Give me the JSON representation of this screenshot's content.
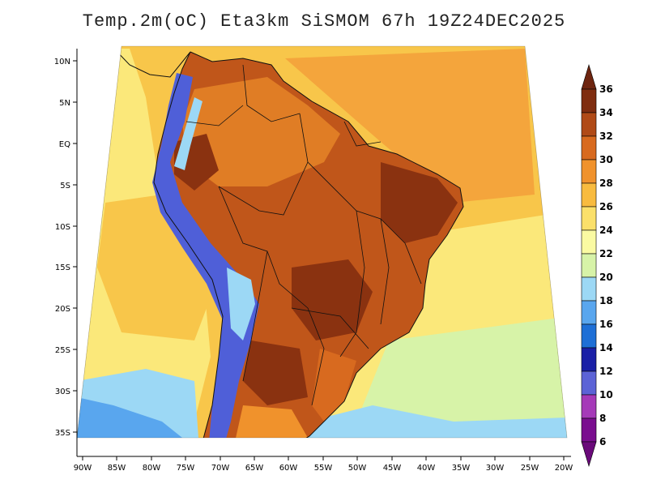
{
  "title": "Temp.2m(oC) Eta3km SiSMOM 67h 19Z24DEC2025",
  "lat_labels": [
    "10N",
    "5N",
    "EQ",
    "5S",
    "10S",
    "15S",
    "20S",
    "25S",
    "30S",
    "35S"
  ],
  "lon_labels": [
    "90W",
    "85W",
    "80W",
    "75W",
    "70W",
    "65W",
    "60W",
    "55W",
    "50W",
    "45W",
    "40W",
    "35W",
    "30W",
    "25W",
    "20W"
  ],
  "colorbar": {
    "labels": [
      "6",
      "8",
      "10",
      "12",
      "14",
      "16",
      "18",
      "20",
      "22",
      "24",
      "26",
      "28",
      "30",
      "32",
      "34",
      "36"
    ],
    "colors": [
      "#7a0d8f",
      "#a53ab8",
      "#5c63d6",
      "#1a1fa6",
      "#1e6fd6",
      "#59a6ee",
      "#9cd8f5",
      "#d7f3a8",
      "#fafaa2",
      "#fbe06a",
      "#f8bb3f",
      "#f0922c",
      "#d86a1f",
      "#b04a17",
      "#7f2d10"
    ],
    "cap_bottom_color": "#6a0a7a",
    "cap_top_color": "#6e2510"
  },
  "colors": {
    "ocean_warm": "#f8c64a",
    "ocean_mid": "#fbe87a",
    "ocean_cool": "#d7f3a8",
    "ocean_cold": "#8fcff2",
    "land_hot": "#c0561a",
    "land_very_hot": "#8a3210",
    "land_warm": "#e07d25",
    "andes": "#4f5fd8"
  }
}
